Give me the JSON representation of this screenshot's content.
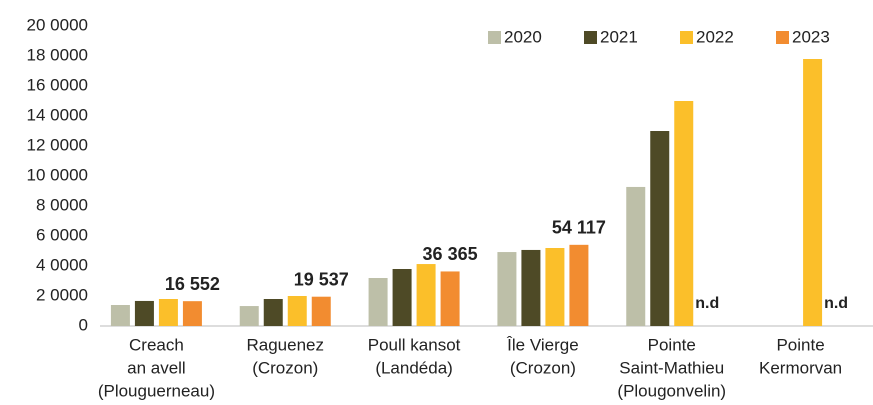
{
  "chart_data": {
    "type": "bar",
    "categories": [
      [
        "Creach",
        "an avell",
        "(Plouguerneau)"
      ],
      [
        "Raguenez",
        "(Crozon)"
      ],
      [
        "Poull kansot",
        "(Landéda)"
      ],
      [
        "Île Vierge",
        "(Crozon)"
      ],
      [
        "Pointe",
        "Saint-Mathieu",
        "(Plougonvelin)"
      ],
      [
        "Pointe",
        "Kermorvan"
      ]
    ],
    "series": [
      {
        "name": "2020",
        "color": "#bdbfa8",
        "values": [
          14000,
          13300,
          32000,
          49300,
          92700,
          null
        ]
      },
      {
        "name": "2021",
        "color": "#4e4a26",
        "values": [
          16700,
          18000,
          38000,
          50700,
          130000,
          null
        ]
      },
      {
        "name": "2022",
        "color": "#fbbf2a",
        "values": [
          18000,
          20000,
          41300,
          52000,
          150000,
          178000
        ]
      },
      {
        "name": "2023",
        "color": "#f28c30",
        "values": [
          16552,
          19537,
          36365,
          54117,
          null,
          null
        ],
        "value_labels": [
          "16 552",
          "19 537",
          "36 365",
          "54 117",
          "n.d",
          "n.d"
        ]
      }
    ],
    "ylim": [
      0,
      200000
    ],
    "yticks": [
      0,
      {
        "value": 20000,
        "label": "2 0000"
      },
      {
        "value": 40000,
        "label": "4 0000"
      },
      {
        "value": 60000,
        "label": "6 0000"
      },
      {
        "value": 80000,
        "label": "8 0000"
      },
      {
        "value": 100000,
        "label": "10 0000"
      },
      {
        "value": 120000,
        "label": "12 0000"
      },
      {
        "value": 140000,
        "label": "14 0000"
      },
      {
        "value": 160000,
        "label": "16 0000"
      },
      {
        "value": 180000,
        "label": "18 0000"
      },
      {
        "value": 200000,
        "label": "20 0000"
      }
    ],
    "legend": "top-right",
    "grid": false
  }
}
